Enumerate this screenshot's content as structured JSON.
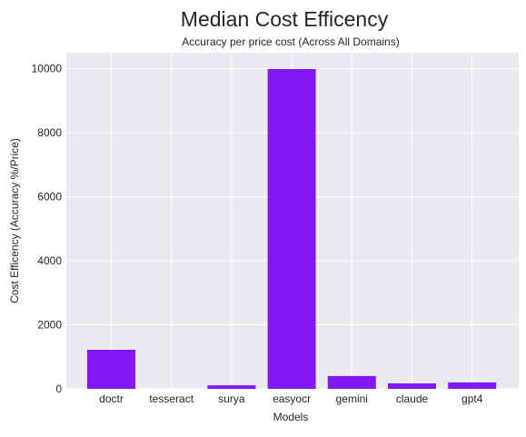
{
  "chart_data": {
    "type": "bar",
    "title": "Median Cost Efficency",
    "subtitle": "Accuracy per price cost (Across All Domains)",
    "xlabel": "Models",
    "ylabel": "Cost Efficency (Accuracy %/Price)",
    "categories": [
      "doctr",
      "tesseract",
      "surya",
      "easyocr",
      "gemini",
      "claude",
      "gpt4"
    ],
    "values": [
      1220,
      0,
      110,
      9990,
      400,
      170,
      200
    ],
    "ylim": [
      0,
      10500
    ],
    "yticks": [
      0,
      2000,
      4000,
      6000,
      8000,
      10000
    ],
    "ytick_labels": [
      "0",
      "2000",
      "4000",
      "6000",
      "8000",
      "10000"
    ],
    "grid": true,
    "colors": {
      "bar": "#8418f5",
      "plot_background": "#eaeaf2",
      "grid": "#ffffff",
      "text": "#262626"
    }
  }
}
